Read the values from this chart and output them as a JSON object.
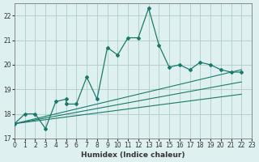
{
  "xlabel": "Humidex (Indice chaleur)",
  "background_color": "#dff0f0",
  "grid_color": "#b0cccc",
  "line_color": "#1a7a6a",
  "xlim": [
    0,
    23
  ],
  "ylim": [
    17,
    22.5
  ],
  "yticks": [
    17,
    18,
    19,
    20,
    21,
    22
  ],
  "xticks": [
    0,
    1,
    2,
    3,
    4,
    5,
    6,
    7,
    8,
    9,
    10,
    11,
    12,
    13,
    14,
    15,
    16,
    17,
    18,
    19,
    20,
    21,
    22,
    23
  ],
  "line1_x": [
    0,
    1,
    2,
    3,
    4,
    5,
    5,
    6,
    7,
    8,
    9,
    10,
    11,
    12,
    13,
    14,
    15,
    16,
    17,
    18,
    19,
    20,
    21,
    22
  ],
  "line1_y": [
    17.6,
    18.0,
    18.0,
    17.4,
    18.5,
    18.6,
    18.4,
    18.4,
    19.5,
    18.6,
    20.7,
    20.4,
    21.1,
    21.1,
    22.3,
    20.8,
    19.9,
    20.0,
    19.8,
    20.1,
    20.0,
    19.8,
    19.7,
    19.7
  ],
  "line3_x": [
    0,
    22
  ],
  "line3_y": [
    17.6,
    18.8
  ],
  "line4_x": [
    0,
    22
  ],
  "line4_y": [
    17.6,
    19.3
  ],
  "line5_x": [
    0,
    22
  ],
  "line5_y": [
    17.6,
    19.8
  ]
}
